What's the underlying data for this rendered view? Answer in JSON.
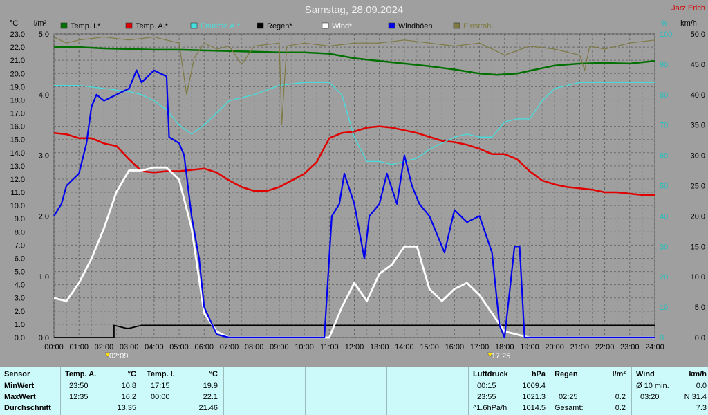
{
  "header": {
    "title": "Samstag, 28.09.2024",
    "author": "Jarz Erich"
  },
  "chart_data": {
    "type": "line",
    "title": "Samstag, 28.09.2024",
    "x_ticks": [
      "00:00",
      "01:00",
      "02:00",
      "03:00",
      "04:00",
      "05:00",
      "06:00",
      "07:00",
      "08:00",
      "09:00",
      "10:00",
      "11:00",
      "12:00",
      "13:00",
      "14:00",
      "15:00",
      "16:00",
      "17:00",
      "18:00",
      "19:00",
      "20:00",
      "21:00",
      "22:00",
      "23:00",
      "24:00"
    ],
    "markers": [
      {
        "label": "02:09",
        "x": 2.15
      },
      {
        "label": "17:25",
        "x": 17.42
      }
    ],
    "axes": {
      "temp": {
        "unit": "°C",
        "range": [
          0,
          23
        ],
        "ticks": [
          "0.0",
          "1.0",
          "2.0",
          "3.0",
          "4.0",
          "5.0",
          "6.0",
          "7.0",
          "8.0",
          "9.0",
          "10.0",
          "11.0",
          "12.0",
          "13.0",
          "14.0",
          "15.0",
          "16.0",
          "17.0",
          "18.0",
          "19.0",
          "20.0",
          "21.0",
          "22.0",
          "23.0"
        ]
      },
      "rain": {
        "unit": "l/m²",
        "range": [
          0,
          5
        ],
        "ticks": [
          "0.0",
          "1.0",
          "2.0",
          "3.0",
          "4.0",
          "5.0"
        ]
      },
      "humidity": {
        "unit": "%",
        "range": [
          0,
          100
        ],
        "ticks": [
          "0",
          "10",
          "20",
          "30",
          "40",
          "50",
          "60",
          "70",
          "80",
          "90",
          "100"
        ]
      },
      "wind": {
        "unit": "km/h",
        "range": [
          0,
          50
        ],
        "ticks": [
          "0.0",
          "5.0",
          "10.0",
          "15.0",
          "20.0",
          "25.0",
          "30.0",
          "35.0",
          "40.0",
          "45.0",
          "50.0"
        ]
      }
    },
    "grid": true,
    "legend_position": "top",
    "series": [
      {
        "name": "Temp. I.*",
        "color": "#007000",
        "axis": "temp",
        "width": 2.5,
        "points": [
          [
            0,
            22.0
          ],
          [
            1,
            22.0
          ],
          [
            2,
            21.9
          ],
          [
            3,
            21.85
          ],
          [
            4,
            21.8
          ],
          [
            5,
            21.8
          ],
          [
            6,
            21.75
          ],
          [
            7,
            21.7
          ],
          [
            8,
            21.65
          ],
          [
            9,
            21.6
          ],
          [
            10,
            21.6
          ],
          [
            11,
            21.5
          ],
          [
            12,
            21.15
          ],
          [
            13,
            20.95
          ],
          [
            14,
            20.75
          ],
          [
            15,
            20.55
          ],
          [
            16,
            20.3
          ],
          [
            17,
            20.0
          ],
          [
            17.7,
            19.9
          ],
          [
            18.5,
            20.0
          ],
          [
            19,
            20.2
          ],
          [
            20,
            20.6
          ],
          [
            21,
            20.75
          ],
          [
            22,
            20.8
          ],
          [
            23,
            20.75
          ],
          [
            24,
            20.95
          ]
        ]
      },
      {
        "name": "Temp. A.*",
        "color": "#e00000",
        "axis": "temp",
        "width": 2.5,
        "points": [
          [
            0,
            15.5
          ],
          [
            0.5,
            15.4
          ],
          [
            1,
            15.1
          ],
          [
            1.5,
            15.1
          ],
          [
            2,
            14.7
          ],
          [
            2.5,
            14.5
          ],
          [
            3,
            13.5
          ],
          [
            3.5,
            12.6
          ],
          [
            4,
            12.5
          ],
          [
            4.5,
            12.6
          ],
          [
            5,
            12.6
          ],
          [
            5.5,
            12.7
          ],
          [
            6,
            12.8
          ],
          [
            6.5,
            12.5
          ],
          [
            7,
            11.9
          ],
          [
            7.5,
            11.4
          ],
          [
            8,
            11.1
          ],
          [
            8.5,
            11.1
          ],
          [
            9,
            11.4
          ],
          [
            9.5,
            11.9
          ],
          [
            10,
            12.4
          ],
          [
            10.5,
            13.3
          ],
          [
            11,
            15.1
          ],
          [
            11.5,
            15.5
          ],
          [
            12,
            15.6
          ],
          [
            12.5,
            15.9
          ],
          [
            13,
            16.0
          ],
          [
            13.5,
            15.9
          ],
          [
            14,
            15.7
          ],
          [
            14.5,
            15.5
          ],
          [
            15,
            15.2
          ],
          [
            15.5,
            14.9
          ],
          [
            16,
            14.8
          ],
          [
            16.5,
            14.6
          ],
          [
            17,
            14.3
          ],
          [
            17.5,
            13.9
          ],
          [
            18,
            13.9
          ],
          [
            18.5,
            13.5
          ],
          [
            19,
            12.6
          ],
          [
            19.5,
            11.9
          ],
          [
            20,
            11.6
          ],
          [
            20.5,
            11.4
          ],
          [
            21,
            11.3
          ],
          [
            21.5,
            11.2
          ],
          [
            22,
            11.0
          ],
          [
            22.5,
            11.0
          ],
          [
            23,
            10.9
          ],
          [
            23.5,
            10.8
          ],
          [
            24,
            10.8
          ]
        ]
      },
      {
        "name": "Feuchte A.*",
        "color": "#44e0e0",
        "axis": "humidity",
        "width": 1.3,
        "points": [
          [
            0,
            83
          ],
          [
            1,
            83
          ],
          [
            2,
            82
          ],
          [
            3,
            81
          ],
          [
            3.5,
            80
          ],
          [
            4,
            78
          ],
          [
            4.5,
            75
          ],
          [
            5,
            70
          ],
          [
            5.5,
            67
          ],
          [
            6,
            70
          ],
          [
            7,
            78
          ],
          [
            8,
            80
          ],
          [
            9,
            83
          ],
          [
            10,
            84
          ],
          [
            11,
            84
          ],
          [
            11.5,
            80
          ],
          [
            12,
            66
          ],
          [
            12.5,
            58
          ],
          [
            13,
            58
          ],
          [
            13.5,
            57
          ],
          [
            14,
            58
          ],
          [
            14.5,
            59
          ],
          [
            15,
            62
          ],
          [
            15.5,
            64
          ],
          [
            16,
            66
          ],
          [
            16.5,
            67
          ],
          [
            17,
            66
          ],
          [
            17.5,
            66
          ],
          [
            18,
            71
          ],
          [
            18.5,
            72
          ],
          [
            19,
            72
          ],
          [
            19.5,
            78
          ],
          [
            20,
            82
          ],
          [
            21,
            84
          ],
          [
            22,
            84
          ],
          [
            23,
            84
          ],
          [
            24,
            84
          ]
        ]
      },
      {
        "name": "Regen*",
        "color": "#000000",
        "axis": "rain",
        "width": 1.8,
        "points": [
          [
            0,
            0
          ],
          [
            2.4,
            0
          ],
          [
            2.4,
            0.2
          ],
          [
            2.9,
            0.15
          ],
          [
            3,
            0.15
          ],
          [
            3.5,
            0.2
          ],
          [
            4.5,
            0.2
          ],
          [
            24,
            0.2
          ]
        ]
      },
      {
        "name": "Wind*",
        "color": "#ffffff",
        "axis": "wind",
        "width": 2.8,
        "points": [
          [
            0,
            6.5
          ],
          [
            0.5,
            6.0
          ],
          [
            1,
            9
          ],
          [
            1.5,
            13
          ],
          [
            2,
            18
          ],
          [
            2.5,
            24
          ],
          [
            3,
            27.5
          ],
          [
            3.5,
            27.5
          ],
          [
            4,
            28
          ],
          [
            4.5,
            28
          ],
          [
            5,
            26
          ],
          [
            5.5,
            18
          ],
          [
            6,
            4
          ],
          [
            6.5,
            1
          ],
          [
            7,
            0
          ],
          [
            11,
            0
          ],
          [
            11.5,
            5
          ],
          [
            12,
            9
          ],
          [
            12.5,
            6
          ],
          [
            13,
            10.5
          ],
          [
            13.5,
            12
          ],
          [
            14,
            15
          ],
          [
            14.5,
            15
          ],
          [
            15,
            8
          ],
          [
            15.5,
            6
          ],
          [
            16,
            8
          ],
          [
            16.5,
            9
          ],
          [
            17,
            7
          ],
          [
            17.5,
            4
          ],
          [
            18,
            1
          ],
          [
            18.5,
            0.5
          ],
          [
            19,
            0
          ],
          [
            24,
            0
          ]
        ]
      },
      {
        "name": "Windböen",
        "color": "#0000ee",
        "axis": "wind",
        "width": 2.2,
        "points": [
          [
            0,
            20
          ],
          [
            0.3,
            22
          ],
          [
            0.5,
            25
          ],
          [
            1,
            27
          ],
          [
            1.3,
            32
          ],
          [
            1.5,
            38
          ],
          [
            1.7,
            40
          ],
          [
            2,
            39
          ],
          [
            2.5,
            40
          ],
          [
            3,
            41
          ],
          [
            3.3,
            44
          ],
          [
            3.5,
            42
          ],
          [
            4,
            44
          ],
          [
            4.5,
            43
          ],
          [
            4.6,
            33
          ],
          [
            5,
            32
          ],
          [
            5.2,
            30
          ],
          [
            5.5,
            20
          ],
          [
            5.8,
            13
          ],
          [
            6,
            5
          ],
          [
            6.5,
            0.5
          ],
          [
            7,
            0
          ],
          [
            10.8,
            0
          ],
          [
            11.1,
            20
          ],
          [
            11.4,
            22
          ],
          [
            11.6,
            27
          ],
          [
            12,
            22
          ],
          [
            12.4,
            13
          ],
          [
            12.6,
            20
          ],
          [
            13,
            22
          ],
          [
            13.3,
            27
          ],
          [
            13.7,
            22
          ],
          [
            14,
            30
          ],
          [
            14.3,
            25
          ],
          [
            14.6,
            22
          ],
          [
            15,
            20
          ],
          [
            15.3,
            17
          ],
          [
            15.6,
            14
          ],
          [
            16,
            21
          ],
          [
            16.5,
            19
          ],
          [
            17,
            20
          ],
          [
            17.5,
            14
          ],
          [
            17.8,
            2
          ],
          [
            18,
            0
          ],
          [
            18.4,
            15
          ],
          [
            18.6,
            15
          ],
          [
            18.8,
            0
          ],
          [
            24,
            0
          ]
        ]
      },
      {
        "name": "Einstrahl.",
        "color": "#7e7a42",
        "axis": "humidity",
        "width": 1.2,
        "points": [
          [
            0,
            99
          ],
          [
            0.5,
            97
          ],
          [
            1,
            98
          ],
          [
            2,
            99
          ],
          [
            3,
            98
          ],
          [
            4,
            99
          ],
          [
            5,
            97
          ],
          [
            5.3,
            80
          ],
          [
            5.6,
            92
          ],
          [
            6,
            97
          ],
          [
            6.5,
            95
          ],
          [
            7,
            96
          ],
          [
            7.5,
            90
          ],
          [
            8,
            96
          ],
          [
            9,
            97
          ],
          [
            9.1,
            70
          ],
          [
            9.3,
            96
          ],
          [
            10,
            97
          ],
          [
            11,
            96
          ],
          [
            12,
            97
          ],
          [
            13,
            97
          ],
          [
            14,
            98
          ],
          [
            15,
            97
          ],
          [
            16,
            96
          ],
          [
            17,
            97
          ],
          [
            18,
            93
          ],
          [
            19,
            96
          ],
          [
            20,
            95
          ],
          [
            21,
            93
          ],
          [
            21.2,
            88
          ],
          [
            21.4,
            96
          ],
          [
            22,
            95
          ],
          [
            23,
            97
          ],
          [
            24,
            98
          ]
        ]
      }
    ]
  },
  "stats": {
    "sensor": {
      "header": "Sensor",
      "rows": [
        "MinWert",
        "MaxWert",
        "Durchschnitt"
      ]
    },
    "temp_a": {
      "name": "Temp. A.",
      "unit": "°C",
      "min_time": "23:50",
      "min_val": "10.8",
      "max_time": "12:35",
      "max_val": "16.2",
      "avg": "13.35"
    },
    "temp_i": {
      "name": "Temp. I.",
      "unit": "°C",
      "min_time": "17:15",
      "min_val": "19.9",
      "max_time": "00:00",
      "max_val": "22.1",
      "avg": "21.46"
    },
    "pressure": {
      "name": "Luftdruck",
      "unit": "hPa",
      "min_time": "00:15",
      "min_val": "1009.4",
      "max_time": "23:55",
      "max_val": "1021.3",
      "trend_label": "^1.6hPa/h",
      "trend_val": "1014.5"
    },
    "rain": {
      "name": "Regen",
      "unit": "l/m²",
      "max_time": "02:25",
      "max_val": "0.2",
      "total_label": "Gesamt:",
      "total_val": "0.2"
    },
    "wind": {
      "name": "Wind",
      "unit": "km/h",
      "avg_label": "Ø 10 min.",
      "avg_val": "0.0",
      "max_time": "03:20",
      "max_val": "N 31.4",
      "last_val": "7.3"
    }
  }
}
